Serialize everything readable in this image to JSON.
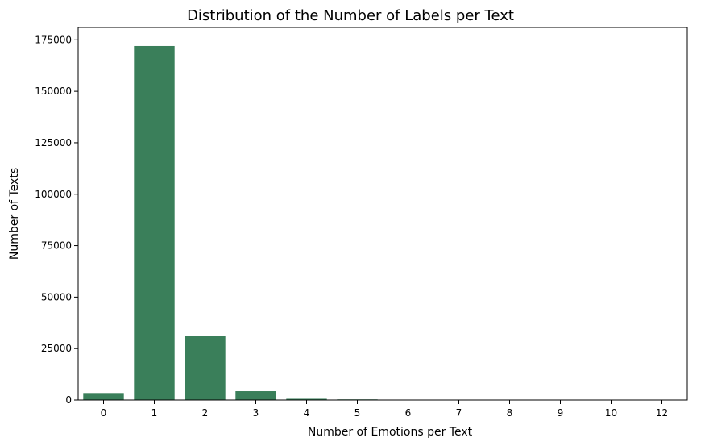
{
  "chart_data": {
    "type": "bar",
    "title": "Distribution of the Number of Labels per Text",
    "xlabel": "Number of Emotions per Text",
    "ylabel": "Number of Texts",
    "categories": [
      "0",
      "1",
      "2",
      "3",
      "4",
      "5",
      "6",
      "7",
      "8",
      "9",
      "10",
      "12"
    ],
    "values": [
      3400,
      172000,
      31300,
      4300,
      600,
      300,
      50,
      20,
      10,
      5,
      5,
      5
    ],
    "ylim": [
      0,
      181000
    ],
    "yticks": [
      0,
      25000,
      50000,
      75000,
      100000,
      125000,
      150000,
      175000
    ],
    "bar_color": "#3a7f5a",
    "grid": false,
    "legend": "none"
  }
}
